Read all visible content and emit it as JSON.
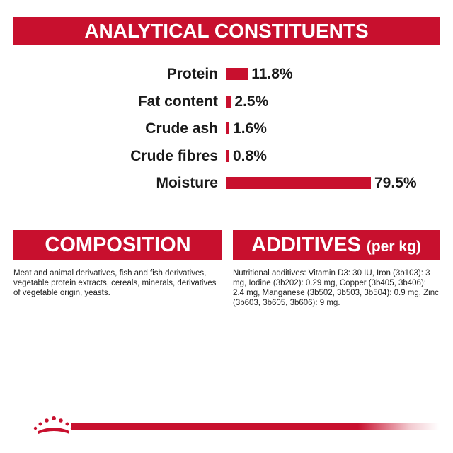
{
  "header": {
    "title": "ANALYTICAL CONSTITUENTS"
  },
  "chart_data": {
    "type": "bar",
    "categories": [
      "Protein",
      "Fat content",
      "Crude ash",
      "Crude fibres",
      "Moisture"
    ],
    "values": [
      11.8,
      2.5,
      1.6,
      0.8,
      79.5
    ],
    "value_labels": [
      "11.8%",
      "2.5%",
      "1.6%",
      "0.8%",
      "79.5%"
    ],
    "orientation": "horizontal",
    "unit": "%",
    "xlim": [
      0,
      79.5
    ],
    "grid": false,
    "bar_color": "#c8102e"
  },
  "composition": {
    "title": "COMPOSITION",
    "text": "Meat and animal derivatives, fish and fish derivatives, vegetable protein extracts, cereals, minerals, derivatives of vegetable origin, yeasts."
  },
  "additives": {
    "title": "ADDITIVES",
    "unit": "(per kg)",
    "text": "Nutritional additives: Vitamin D3: 30 IU, Iron (3b103): 3 mg, Iodine (3b202): 0.29 mg, Copper (3b405, 3b406): 2.4 mg, Manganese (3b502, 3b503, 3b504): 0.9 mg, Zinc (3b603, 3b605, 3b606): 9 mg."
  },
  "colors": {
    "brand_red": "#c8102e",
    "text": "#1a1a1a"
  },
  "footer": {
    "logo_icon": "crown-icon"
  }
}
